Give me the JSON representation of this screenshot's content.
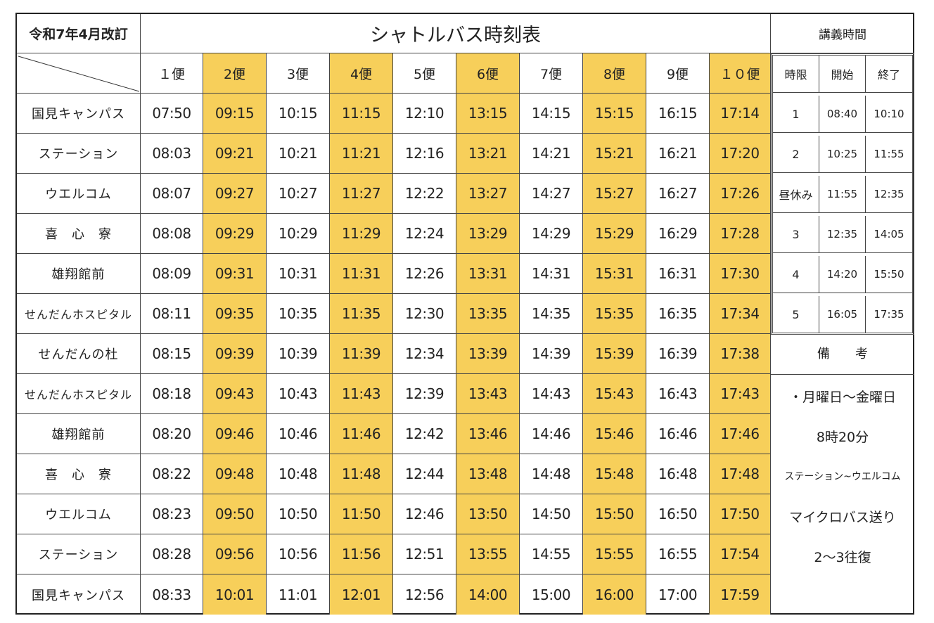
{
  "revision": "令和7年4月改訂",
  "title": "シャトルバス時刻表",
  "lecture": {
    "title": "講義時間",
    "headers": [
      "時限",
      "開始",
      "終了"
    ],
    "rows": [
      {
        "period": "1",
        "start": "08:40",
        "end": "10:10"
      },
      {
        "period": "2",
        "start": "10:25",
        "end": "11:55"
      },
      {
        "period": "昼休み",
        "start": "11:55",
        "end": "12:35"
      },
      {
        "period": "3",
        "start": "12:35",
        "end": "14:05"
      },
      {
        "period": "4",
        "start": "14:20",
        "end": "15:50"
      },
      {
        "period": "5",
        "start": "16:05",
        "end": "17:35"
      }
    ]
  },
  "remarks": {
    "title": "備　　考",
    "lines": [
      "・月曜日～金曜日",
      "8時20分",
      "ステーション~ウエルコム",
      "マイクロバス送り",
      "2～3往復"
    ]
  },
  "bins": [
    "１便",
    "2便",
    "3便",
    "4便",
    "5便",
    "6便",
    "7便",
    "8便",
    "9便",
    "１０便"
  ],
  "highlight_color": "#f7cf5a",
  "highlight_bins": [
    2,
    4,
    6,
    8,
    10
  ],
  "stops": [
    {
      "name": "国見キャンパス",
      "times": [
        "07:50",
        "09:15",
        "10:15",
        "11:15",
        "12:10",
        "13:15",
        "14:15",
        "15:15",
        "16:15",
        "17:14"
      ]
    },
    {
      "name": "ステーション",
      "times": [
        "08:03",
        "09:21",
        "10:21",
        "11:21",
        "12:16",
        "13:21",
        "14:21",
        "15:21",
        "16:21",
        "17:20"
      ]
    },
    {
      "name": "ウエルコム",
      "times": [
        "08:07",
        "09:27",
        "10:27",
        "11:27",
        "12:22",
        "13:27",
        "14:27",
        "15:27",
        "16:27",
        "17:26"
      ]
    },
    {
      "name": "喜　心　寮",
      "times": [
        "08:08",
        "09:29",
        "10:29",
        "11:29",
        "12:24",
        "13:29",
        "14:29",
        "15:29",
        "16:29",
        "17:28"
      ]
    },
    {
      "name": "雄翔館前",
      "times": [
        "08:09",
        "09:31",
        "10:31",
        "11:31",
        "12:26",
        "13:31",
        "14:31",
        "15:31",
        "16:31",
        "17:30"
      ]
    },
    {
      "name": "せんだんホスピタル",
      "times": [
        "08:11",
        "09:35",
        "10:35",
        "11:35",
        "12:30",
        "13:35",
        "14:35",
        "15:35",
        "16:35",
        "17:34"
      ]
    },
    {
      "name": "せんだんの杜",
      "times": [
        "08:15",
        "09:39",
        "10:39",
        "11:39",
        "12:34",
        "13:39",
        "14:39",
        "15:39",
        "16:39",
        "17:38"
      ]
    },
    {
      "name": "せんだんホスピタル",
      "times": [
        "08:18",
        "09:43",
        "10:43",
        "11:43",
        "12:39",
        "13:43",
        "14:43",
        "15:43",
        "16:43",
        "17:43"
      ]
    },
    {
      "name": "雄翔館前",
      "times": [
        "08:20",
        "09:46",
        "10:46",
        "11:46",
        "12:42",
        "13:46",
        "14:46",
        "15:46",
        "16:46",
        "17:46"
      ]
    },
    {
      "name": "喜　心　寮",
      "times": [
        "08:22",
        "09:48",
        "10:48",
        "11:48",
        "12:44",
        "13:48",
        "14:48",
        "15:48",
        "16:48",
        "17:48"
      ]
    },
    {
      "name": "ウエルコム",
      "times": [
        "08:23",
        "09:50",
        "10:50",
        "11:50",
        "12:46",
        "13:50",
        "14:50",
        "15:50",
        "16:50",
        "17:50"
      ]
    },
    {
      "name": "ステーション",
      "times": [
        "08:28",
        "09:56",
        "10:56",
        "11:56",
        "12:51",
        "13:55",
        "14:55",
        "15:55",
        "16:55",
        "17:54"
      ]
    },
    {
      "name": "国見キャンパス",
      "times": [
        "08:33",
        "10:01",
        "11:01",
        "12:01",
        "12:56",
        "14:00",
        "15:00",
        "16:00",
        "17:00",
        "17:59"
      ]
    }
  ]
}
